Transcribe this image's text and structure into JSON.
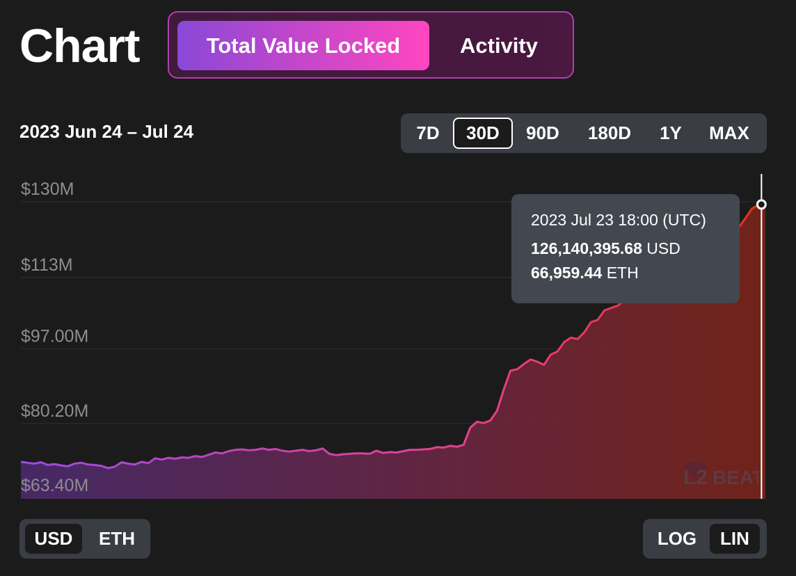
{
  "page": {
    "title": "Chart",
    "main_tabs": [
      {
        "label": "Total Value Locked",
        "active": true
      },
      {
        "label": "Activity",
        "active": false
      }
    ],
    "date_range": "2023 Jun 24 – Jul 24",
    "range_options": [
      {
        "label": "7D",
        "selected": false
      },
      {
        "label": "30D",
        "selected": true
      },
      {
        "label": "90D",
        "selected": false
      },
      {
        "label": "180D",
        "selected": false
      },
      {
        "label": "1Y",
        "selected": false
      },
      {
        "label": "MAX",
        "selected": false
      }
    ],
    "unit_options": [
      {
        "label": "USD",
        "selected": true
      },
      {
        "label": "ETH",
        "selected": false
      }
    ],
    "scale_options": [
      {
        "label": "LOG",
        "selected": false
      },
      {
        "label": "LIN",
        "selected": true
      }
    ],
    "tooltip": {
      "date": "2023 Jul 23 18:00 (UTC)",
      "usd_value": "126,140,395.68",
      "usd_unit": "USD",
      "eth_value": "66,959.44",
      "eth_unit": "ETH"
    },
    "logo_text": "L2BEAT",
    "colors": {
      "background": "#1b1b1c",
      "line_start": "#9a4be0",
      "line_mid": "#e8408a",
      "line_end": "#e8301e",
      "tab_gradient_start": "#8a48d6",
      "tab_gradient_end": "#ff46c0"
    }
  },
  "chart_data": {
    "type": "area",
    "title": "",
    "xlabel": "",
    "ylabel": "",
    "x_range": [
      "2023-06-24",
      "2023-07-24"
    ],
    "y_ticks": [
      "$63.40M",
      "$80.20M",
      "$97.00M",
      "$113M",
      "$130M"
    ],
    "y_tick_values": [
      63.4,
      80.2,
      97.0,
      113.0,
      130.0
    ],
    "ylim": [
      60.0,
      133.0
    ],
    "grid": true,
    "legend": "none",
    "highlight": {
      "x": "2023 Jul 23 18:00 (UTC)",
      "value": 126.14
    },
    "series": [
      {
        "values": [
          68.3,
          68.1,
          67.9,
          68.2,
          67.6,
          67.8,
          67.5,
          67.3,
          67.9,
          68.1,
          67.7,
          67.6,
          67.4,
          66.9,
          67.2,
          68.2,
          67.9,
          67.7,
          68.3,
          68.0,
          69.1,
          68.8,
          69.2,
          69.0,
          69.3,
          69.2,
          69.6,
          69.4,
          69.9,
          70.4,
          70.2,
          70.7,
          71.0,
          71.1,
          70.9,
          71.0,
          71.3,
          71.0,
          71.2,
          70.8,
          70.6,
          70.8,
          71.0,
          70.7,
          70.9,
          71.3,
          70.1,
          69.8,
          70.0,
          70.1,
          70.2,
          70.2,
          70.1,
          70.8,
          70.3,
          70.5,
          70.4,
          70.7,
          71.0,
          71.0,
          71.1,
          71.2,
          71.6,
          71.5,
          71.9,
          71.7,
          72.1,
          76.0,
          77.3,
          77.0,
          77.6,
          79.8,
          84.6,
          88.8,
          89.1,
          90.3,
          91.3,
          90.8,
          90.1,
          92.4,
          93.1,
          95.2,
          96.2,
          95.9,
          97.4,
          99.7,
          100.2,
          102.3,
          102.9,
          103.4,
          104.7,
          105.6,
          107.3,
          108.8,
          108.2,
          109.3,
          111.1,
          112.7,
          113.9,
          113.2,
          115.1,
          116.4,
          117.4,
          118.1,
          118.8,
          118.3,
          119.4,
          120.9,
          123.0,
          125.2,
          126.1,
          126.7
        ]
      }
    ]
  }
}
